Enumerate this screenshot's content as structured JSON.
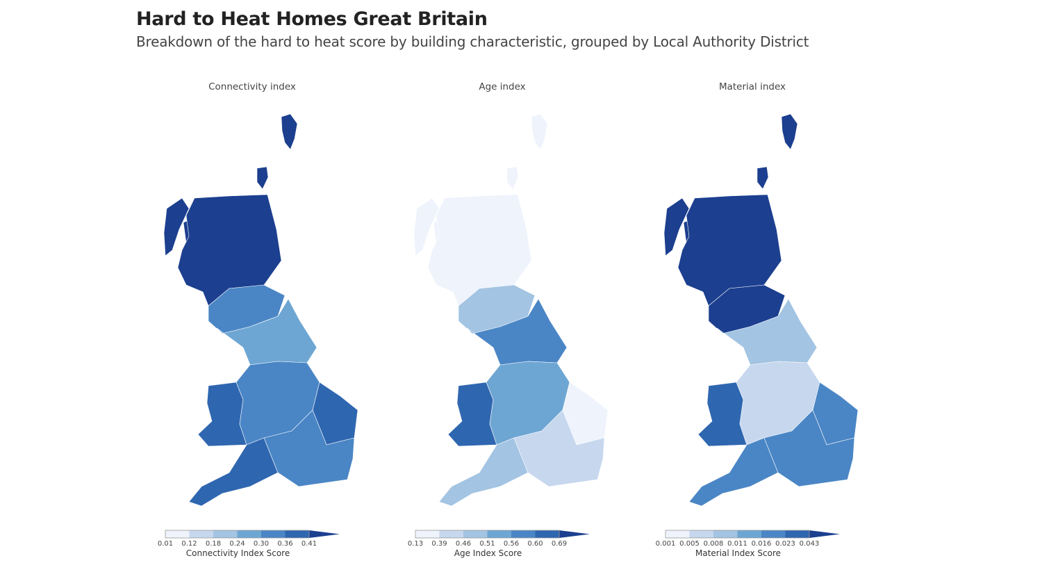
{
  "header": {
    "title": "Hard to Heat Homes Great Britain",
    "subtitle": "Breakdown of the hard to heat score by building characteristic, grouped by Local Authority District"
  },
  "palette": [
    "#eef3fc",
    "#c6d7ee",
    "#a3c4e2",
    "#6ea6d3",
    "#4a86c5",
    "#2f66b0",
    "#1c3f8f"
  ],
  "panels": [
    {
      "title": "Connectivity index",
      "legend_title": "Connectivity Index Score",
      "legend_ticks": [
        "0.01",
        "0.12",
        "0.18",
        "0.24",
        "0.30",
        "0.36",
        "0.41"
      ],
      "region_levels": {
        "islands": 6,
        "highlands": 6,
        "scotland_south": 4,
        "north_england": 3,
        "wales": 5,
        "midlands": 4,
        "east_anglia": 5,
        "south_west": 5,
        "south_east": 4
      }
    },
    {
      "title": "Age index",
      "legend_title": "Age Index Score",
      "legend_ticks": [
        "0.13",
        "0.39",
        "0.46",
        "0.51",
        "0.56",
        "0.60",
        "0.69"
      ],
      "region_levels": {
        "islands": 0,
        "highlands": 0,
        "scotland_south": 2,
        "north_england": 4,
        "wales": 5,
        "midlands": 3,
        "east_anglia": 0,
        "south_west": 2,
        "south_east": 1
      }
    },
    {
      "title": "Material index",
      "legend_title": "Material Index Score",
      "legend_ticks": [
        "0.001",
        "0.005",
        "0.008",
        "0.011",
        "0.016",
        "0.023",
        "0.043"
      ],
      "region_levels": {
        "islands": 6,
        "highlands": 6,
        "scotland_south": 6,
        "north_england": 2,
        "wales": 5,
        "midlands": 1,
        "east_anglia": 4,
        "south_west": 4,
        "south_east": 4
      }
    }
  ]
}
